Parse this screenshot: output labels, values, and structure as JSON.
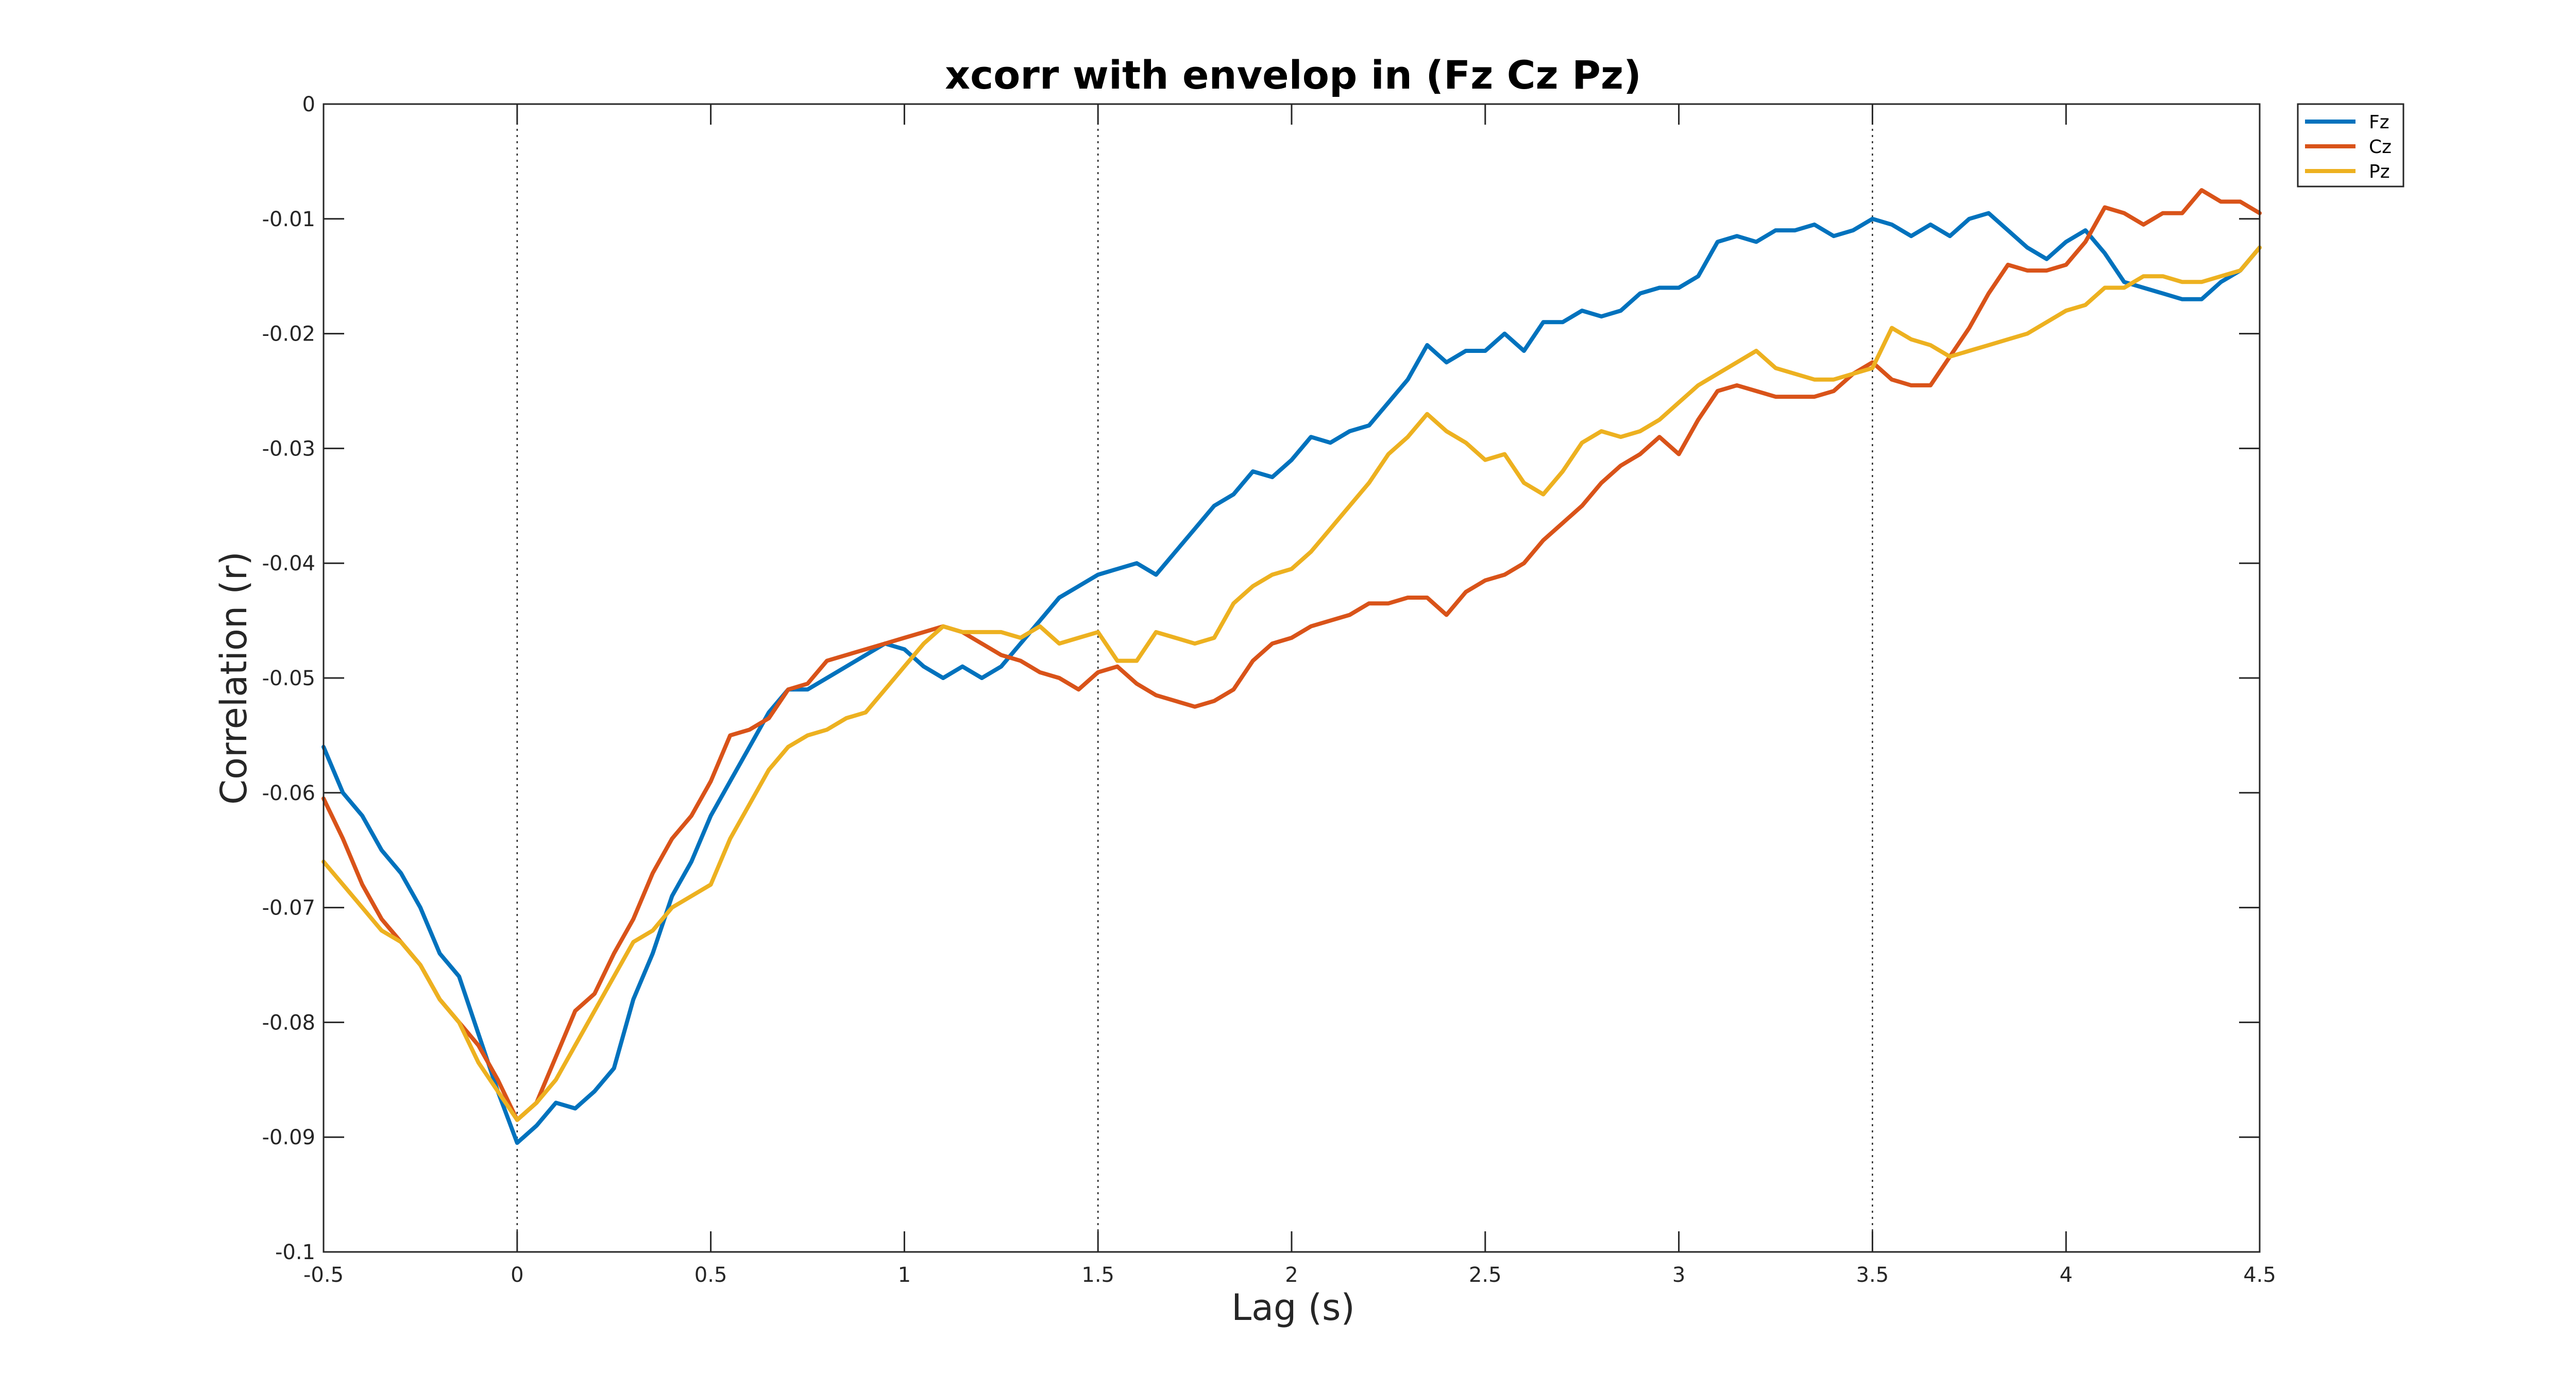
{
  "chart_data": {
    "type": "line",
    "title": "xcorr with envelop in (Fz Cz Pz)",
    "xlabel": "Lag (s)",
    "ylabel": "Correlation (r)",
    "xlim": [
      -0.5,
      4.5
    ],
    "ylim": [
      -0.1,
      0
    ],
    "xticks": [
      -0.5,
      0,
      0.5,
      1,
      1.5,
      2,
      2.5,
      3,
      3.5,
      4,
      4.5
    ],
    "xtick_labels": [
      "-0.5",
      "0",
      "0.5",
      "1",
      "1.5",
      "2",
      "2.5",
      "3",
      "3.5",
      "4",
      "4.5"
    ],
    "yticks": [
      0,
      -0.01,
      -0.02,
      -0.03,
      -0.04,
      -0.05,
      -0.06,
      -0.07,
      -0.08,
      -0.09,
      -0.1
    ],
    "ytick_labels": [
      "0",
      "-0.01",
      "-0.02",
      "-0.03",
      "-0.04",
      "-0.05",
      "-0.06",
      "-0.07",
      "-0.08",
      "-0.09",
      "-0.1"
    ],
    "vlines": [
      0,
      1.5,
      3.5
    ],
    "grid": false,
    "legend": "outside-top-right",
    "series": [
      {
        "name": "Fz",
        "color": "#0072BD",
        "x": [
          -0.5,
          -0.45,
          -0.4,
          -0.35,
          -0.3,
          -0.25,
          -0.2,
          -0.15,
          -0.1,
          -0.05,
          0,
          0.05,
          0.1,
          0.15,
          0.2,
          0.25,
          0.3,
          0.35,
          0.4,
          0.45,
          0.5,
          0.55,
          0.6,
          0.65,
          0.7,
          0.75,
          0.8,
          0.85,
          0.9,
          0.95,
          1.0,
          1.05,
          1.1,
          1.15,
          1.2,
          1.25,
          1.3,
          1.35,
          1.4,
          1.45,
          1.5,
          1.55,
          1.6,
          1.65,
          1.7,
          1.75,
          1.8,
          1.85,
          1.9,
          1.95,
          2.0,
          2.05,
          2.1,
          2.15,
          2.2,
          2.25,
          2.3,
          2.35,
          2.4,
          2.45,
          2.5,
          2.55,
          2.6,
          2.65,
          2.7,
          2.75,
          2.8,
          2.85,
          2.9,
          2.95,
          3.0,
          3.05,
          3.1,
          3.15,
          3.2,
          3.25,
          3.3,
          3.35,
          3.4,
          3.45,
          3.5,
          3.55,
          3.6,
          3.65,
          3.7,
          3.75,
          3.8,
          3.85,
          3.9,
          3.95,
          4.0,
          4.05,
          4.1,
          4.15,
          4.2,
          4.25,
          4.3,
          4.35,
          4.4,
          4.45,
          4.5
        ],
        "y": [
          -0.056,
          -0.06,
          -0.062,
          -0.065,
          -0.067,
          -0.07,
          -0.074,
          -0.076,
          -0.081,
          -0.086,
          -0.0905,
          -0.089,
          -0.087,
          -0.0875,
          -0.086,
          -0.084,
          -0.078,
          -0.074,
          -0.069,
          -0.066,
          -0.062,
          -0.059,
          -0.056,
          -0.053,
          -0.051,
          -0.051,
          -0.05,
          -0.049,
          -0.048,
          -0.047,
          -0.0475,
          -0.049,
          -0.05,
          -0.049,
          -0.05,
          -0.049,
          -0.047,
          -0.045,
          -0.043,
          -0.042,
          -0.041,
          -0.0405,
          -0.04,
          -0.041,
          -0.039,
          -0.037,
          -0.035,
          -0.034,
          -0.032,
          -0.0325,
          -0.031,
          -0.029,
          -0.0295,
          -0.0285,
          -0.028,
          -0.026,
          -0.024,
          -0.021,
          -0.0225,
          -0.0215,
          -0.0215,
          -0.02,
          -0.0215,
          -0.019,
          -0.019,
          -0.018,
          -0.0185,
          -0.018,
          -0.0165,
          -0.016,
          -0.016,
          -0.015,
          -0.012,
          -0.0115,
          -0.012,
          -0.011,
          -0.011,
          -0.0105,
          -0.0115,
          -0.011,
          -0.01,
          -0.0105,
          -0.0115,
          -0.0105,
          -0.0115,
          -0.01,
          -0.0095,
          -0.011,
          -0.0125,
          -0.0135,
          -0.012,
          -0.011,
          -0.013,
          -0.0155,
          -0.016,
          -0.0165,
          -0.017,
          -0.017,
          -0.0155,
          -0.0145,
          -0.0125
        ]
      },
      {
        "name": "Cz",
        "color": "#D95319",
        "x": [
          -0.5,
          -0.45,
          -0.4,
          -0.35,
          -0.3,
          -0.25,
          -0.2,
          -0.15,
          -0.1,
          -0.05,
          0,
          0.05,
          0.1,
          0.15,
          0.2,
          0.25,
          0.3,
          0.35,
          0.4,
          0.45,
          0.5,
          0.55,
          0.6,
          0.65,
          0.7,
          0.75,
          0.8,
          0.85,
          0.9,
          0.95,
          1.0,
          1.05,
          1.1,
          1.15,
          1.2,
          1.25,
          1.3,
          1.35,
          1.4,
          1.45,
          1.5,
          1.55,
          1.6,
          1.65,
          1.7,
          1.75,
          1.8,
          1.85,
          1.9,
          1.95,
          2.0,
          2.05,
          2.1,
          2.15,
          2.2,
          2.25,
          2.3,
          2.35,
          2.4,
          2.45,
          2.5,
          2.55,
          2.6,
          2.65,
          2.7,
          2.75,
          2.8,
          2.85,
          2.9,
          2.95,
          3.0,
          3.05,
          3.1,
          3.15,
          3.2,
          3.25,
          3.3,
          3.35,
          3.4,
          3.45,
          3.5,
          3.55,
          3.6,
          3.65,
          3.7,
          3.75,
          3.8,
          3.85,
          3.9,
          3.95,
          4.0,
          4.05,
          4.1,
          4.15,
          4.2,
          4.25,
          4.3,
          4.35,
          4.4,
          4.45,
          4.5
        ],
        "y": [
          -0.0605,
          -0.064,
          -0.068,
          -0.071,
          -0.073,
          -0.075,
          -0.078,
          -0.08,
          -0.082,
          -0.085,
          -0.0885,
          -0.087,
          -0.083,
          -0.079,
          -0.0775,
          -0.074,
          -0.071,
          -0.067,
          -0.064,
          -0.062,
          -0.059,
          -0.055,
          -0.0545,
          -0.0535,
          -0.051,
          -0.0505,
          -0.0485,
          -0.048,
          -0.0475,
          -0.047,
          -0.0465,
          -0.046,
          -0.0455,
          -0.046,
          -0.047,
          -0.048,
          -0.0485,
          -0.0495,
          -0.05,
          -0.051,
          -0.0495,
          -0.049,
          -0.0505,
          -0.0515,
          -0.052,
          -0.0525,
          -0.052,
          -0.051,
          -0.0485,
          -0.047,
          -0.0465,
          -0.0455,
          -0.045,
          -0.0445,
          -0.0435,
          -0.0435,
          -0.043,
          -0.043,
          -0.0445,
          -0.0425,
          -0.0415,
          -0.041,
          -0.04,
          -0.038,
          -0.0365,
          -0.035,
          -0.033,
          -0.0315,
          -0.0305,
          -0.029,
          -0.0305,
          -0.0275,
          -0.025,
          -0.0245,
          -0.025,
          -0.0255,
          -0.0255,
          -0.0255,
          -0.025,
          -0.0235,
          -0.0225,
          -0.024,
          -0.0245,
          -0.0245,
          -0.022,
          -0.0195,
          -0.0165,
          -0.014,
          -0.0145,
          -0.0145,
          -0.014,
          -0.012,
          -0.009,
          -0.0095,
          -0.0105,
          -0.0095,
          -0.0095,
          -0.0075,
          -0.0085,
          -0.0085,
          -0.0095
        ]
      },
      {
        "name": "Pz",
        "color": "#EDB120",
        "x": [
          -0.5,
          -0.45,
          -0.4,
          -0.35,
          -0.3,
          -0.25,
          -0.2,
          -0.15,
          -0.1,
          -0.05,
          0,
          0.05,
          0.1,
          0.15,
          0.2,
          0.25,
          0.3,
          0.35,
          0.4,
          0.45,
          0.5,
          0.55,
          0.6,
          0.65,
          0.7,
          0.75,
          0.8,
          0.85,
          0.9,
          0.95,
          1.0,
          1.05,
          1.1,
          1.15,
          1.2,
          1.25,
          1.3,
          1.35,
          1.4,
          1.45,
          1.5,
          1.55,
          1.6,
          1.65,
          1.7,
          1.75,
          1.8,
          1.85,
          1.9,
          1.95,
          2.0,
          2.05,
          2.1,
          2.15,
          2.2,
          2.25,
          2.3,
          2.35,
          2.4,
          2.45,
          2.5,
          2.55,
          2.6,
          2.65,
          2.7,
          2.75,
          2.8,
          2.85,
          2.9,
          2.95,
          3.0,
          3.05,
          3.1,
          3.15,
          3.2,
          3.25,
          3.3,
          3.35,
          3.4,
          3.45,
          3.5,
          3.55,
          3.6,
          3.65,
          3.7,
          3.75,
          3.8,
          3.85,
          3.9,
          3.95,
          4.0,
          4.05,
          4.1,
          4.15,
          4.2,
          4.25,
          4.3,
          4.35,
          4.4,
          4.45,
          4.5
        ],
        "y": [
          -0.066,
          -0.068,
          -0.07,
          -0.072,
          -0.073,
          -0.075,
          -0.078,
          -0.08,
          -0.0835,
          -0.086,
          -0.0885,
          -0.087,
          -0.085,
          -0.082,
          -0.079,
          -0.076,
          -0.073,
          -0.072,
          -0.07,
          -0.069,
          -0.068,
          -0.064,
          -0.061,
          -0.058,
          -0.056,
          -0.055,
          -0.0545,
          -0.0535,
          -0.053,
          -0.051,
          -0.049,
          -0.047,
          -0.0455,
          -0.046,
          -0.046,
          -0.046,
          -0.0465,
          -0.0455,
          -0.047,
          -0.0465,
          -0.046,
          -0.0485,
          -0.0485,
          -0.046,
          -0.0465,
          -0.047,
          -0.0465,
          -0.0435,
          -0.042,
          -0.041,
          -0.0405,
          -0.039,
          -0.037,
          -0.035,
          -0.033,
          -0.0305,
          -0.029,
          -0.027,
          -0.0285,
          -0.0295,
          -0.031,
          -0.0305,
          -0.033,
          -0.034,
          -0.032,
          -0.0295,
          -0.0285,
          -0.029,
          -0.0285,
          -0.0275,
          -0.026,
          -0.0245,
          -0.0235,
          -0.0225,
          -0.0215,
          -0.023,
          -0.0235,
          -0.024,
          -0.024,
          -0.0235,
          -0.023,
          -0.0195,
          -0.0205,
          -0.021,
          -0.022,
          -0.0215,
          -0.021,
          -0.0205,
          -0.02,
          -0.019,
          -0.018,
          -0.0175,
          -0.016,
          -0.016,
          -0.015,
          -0.015,
          -0.0155,
          -0.0155,
          -0.015,
          -0.0145,
          -0.0125
        ]
      }
    ]
  }
}
